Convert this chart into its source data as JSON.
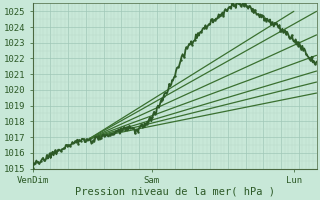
{
  "xlabel": "Pression niveau de la mer( hPa )",
  "bg_color": "#c8e8d8",
  "grid_major_color": "#a0c8b8",
  "grid_minor_color": "#b8d8c8",
  "line_color_main": "#2d5a27",
  "line_color_thin": "#3a7030",
  "ylim": [
    1015,
    1025.5
  ],
  "xlim": [
    0,
    1.0
  ],
  "yticks": [
    1015,
    1016,
    1017,
    1018,
    1019,
    1020,
    1021,
    1022,
    1023,
    1024,
    1025
  ],
  "xtick_labels": [
    "VenDim",
    "Sam",
    "Lun"
  ],
  "xtick_positions": [
    0.0,
    0.42,
    0.92
  ],
  "main_curve_x": [
    0.0,
    0.04,
    0.08,
    0.1,
    0.12,
    0.14,
    0.16,
    0.18,
    0.2,
    0.22,
    0.24,
    0.26,
    0.28,
    0.3,
    0.32,
    0.34,
    0.36,
    0.38,
    0.4,
    0.42,
    0.44,
    0.46,
    0.48,
    0.5,
    0.52,
    0.54,
    0.56,
    0.58,
    0.6,
    0.62,
    0.64,
    0.66,
    0.68,
    0.7,
    0.72,
    0.74,
    0.76,
    0.78,
    0.8,
    0.82,
    0.84,
    0.86,
    0.88,
    0.9,
    0.92,
    0.94,
    0.96,
    0.98,
    1.0
  ],
  "main_curve_y": [
    1015.2,
    1015.6,
    1016.0,
    1016.2,
    1016.4,
    1016.6,
    1016.7,
    1016.9,
    1016.7,
    1016.8,
    1017.0,
    1017.2,
    1017.1,
    1017.3,
    1017.5,
    1017.6,
    1017.4,
    1017.6,
    1017.9,
    1018.2,
    1018.8,
    1019.5,
    1020.2,
    1021.0,
    1021.8,
    1022.5,
    1023.0,
    1023.5,
    1023.9,
    1024.2,
    1024.5,
    1024.7,
    1025.0,
    1025.3,
    1025.4,
    1025.5,
    1025.3,
    1025.0,
    1024.7,
    1024.5,
    1024.3,
    1024.1,
    1023.8,
    1023.5,
    1023.2,
    1022.8,
    1022.5,
    1022.0,
    1021.7
  ],
  "fan_lines": [
    {
      "x0": 0.2,
      "y0": 1016.9,
      "x1": 0.92,
      "y1": 1025.0
    },
    {
      "x0": 0.2,
      "y0": 1016.9,
      "x1": 1.0,
      "y1": 1025.0
    },
    {
      "x0": 0.2,
      "y0": 1016.9,
      "x1": 1.0,
      "y1": 1023.5
    },
    {
      "x0": 0.2,
      "y0": 1016.9,
      "x1": 1.0,
      "y1": 1022.2
    },
    {
      "x0": 0.2,
      "y0": 1016.9,
      "x1": 1.0,
      "y1": 1021.2
    },
    {
      "x0": 0.2,
      "y0": 1016.9,
      "x1": 1.0,
      "y1": 1020.5
    },
    {
      "x0": 0.2,
      "y0": 1016.9,
      "x1": 1.0,
      "y1": 1019.8
    }
  ]
}
